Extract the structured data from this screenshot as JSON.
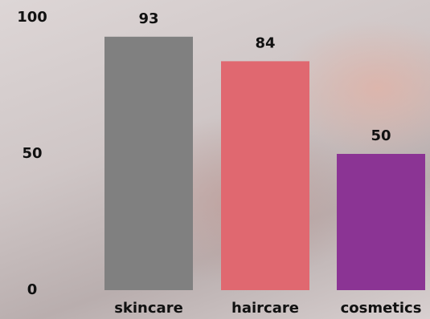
{
  "chart_data": {
    "type": "bar",
    "categories": [
      "skincare",
      "haircare",
      "cosmetics"
    ],
    "values": [
      93,
      84,
      50
    ],
    "colors": [
      "#808080",
      "#e06870",
      "#8b3494"
    ],
    "ylim": [
      0,
      100
    ],
    "yticks": [
      0,
      50,
      100
    ],
    "grid": false
  }
}
